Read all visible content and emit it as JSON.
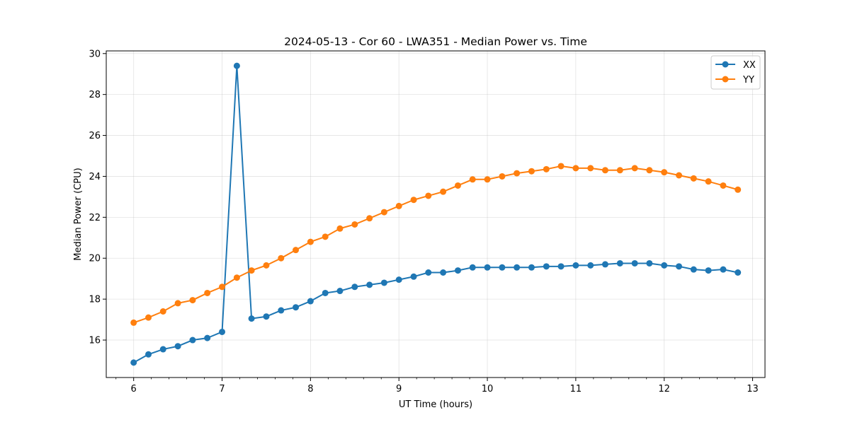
{
  "chart_data": {
    "type": "line",
    "title": "2024-05-13 - Cor 60 - LWA351 - Median Power vs. Time",
    "xlabel": "UT Time (hours)",
    "ylabel": "Median Power (CPU)",
    "xlim": [
      5.69,
      13.14
    ],
    "ylim": [
      14.17,
      30.13
    ],
    "xticks": [
      6,
      7,
      8,
      9,
      10,
      11,
      12,
      13
    ],
    "yticks": [
      16,
      18,
      20,
      22,
      24,
      26,
      28,
      30
    ],
    "xtick_labels": [
      "6",
      "7",
      "8",
      "9",
      "10",
      "11",
      "12",
      "13"
    ],
    "ytick_labels": [
      "16",
      "18",
      "20",
      "22",
      "24",
      "26",
      "28",
      "30"
    ],
    "grid": true,
    "legend_position": "top-right",
    "x": [
      6.0,
      6.167,
      6.333,
      6.5,
      6.667,
      6.833,
      7.0,
      7.167,
      7.333,
      7.5,
      7.667,
      7.833,
      8.0,
      8.167,
      8.333,
      8.5,
      8.667,
      8.833,
      9.0,
      9.167,
      9.333,
      9.5,
      9.667,
      9.833,
      10.0,
      10.167,
      10.333,
      10.5,
      10.667,
      10.833,
      11.0,
      11.167,
      11.333,
      11.5,
      11.667,
      11.833,
      12.0,
      12.167,
      12.333,
      12.5,
      12.667,
      12.833
    ],
    "series": [
      {
        "name": "XX",
        "color": "#1f77b4",
        "values": [
          14.9,
          15.3,
          15.55,
          15.7,
          16.0,
          16.1,
          16.4,
          29.4,
          17.05,
          17.15,
          17.45,
          17.6,
          17.9,
          18.3,
          18.4,
          18.6,
          18.7,
          18.8,
          18.95,
          19.1,
          19.3,
          19.3,
          19.4,
          19.55,
          19.55,
          19.55,
          19.55,
          19.55,
          19.6,
          19.6,
          19.65,
          19.65,
          19.7,
          19.75,
          19.75,
          19.75,
          19.65,
          19.6,
          19.45,
          19.4,
          19.45,
          19.3
        ]
      },
      {
        "name": "YY",
        "color": "#ff7f0e",
        "values": [
          16.85,
          17.1,
          17.4,
          17.8,
          17.95,
          18.3,
          18.6,
          19.05,
          19.4,
          19.65,
          20.0,
          20.4,
          20.8,
          21.05,
          21.45,
          21.65,
          21.95,
          22.25,
          22.55,
          22.85,
          23.05,
          23.25,
          23.55,
          23.85,
          23.85,
          24.0,
          24.15,
          24.25,
          24.35,
          24.5,
          24.4,
          24.4,
          24.3,
          24.3,
          24.4,
          24.3,
          24.2,
          24.05,
          23.9,
          23.75,
          23.55,
          23.35
        ]
      }
    ]
  }
}
